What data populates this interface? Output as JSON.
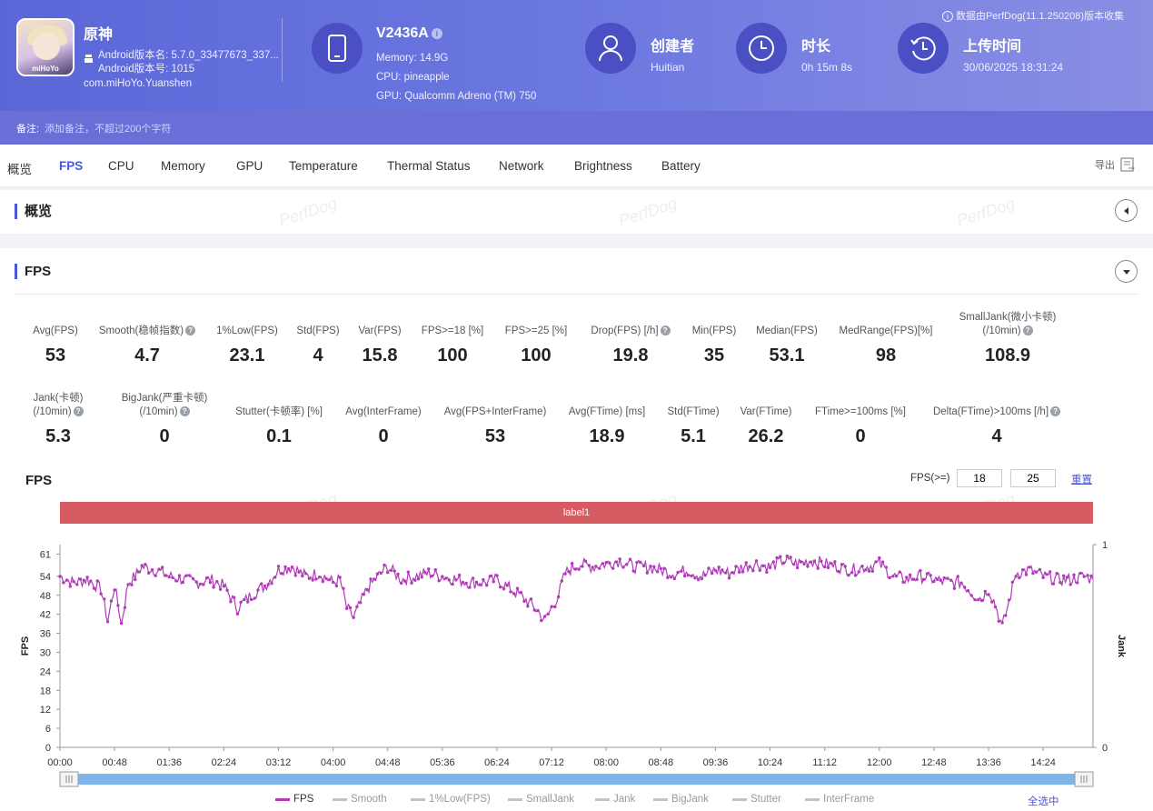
{
  "app": {
    "name": "原神",
    "version_name": "Android版本名: 5.7.0_33477673_337...",
    "version_code": "Android版本号: 1015",
    "package": "com.miHoYo.Yuanshen",
    "icon_text": "miHoYo"
  },
  "device": {
    "model": "V2436A",
    "memory": "Memory: 14.9G",
    "cpu": "CPU: pineapple",
    "gpu": "GPU: Qualcomm Adreno (TM) 750"
  },
  "creator": {
    "label": "创建者",
    "value": "Huitian"
  },
  "duration": {
    "label": "时长",
    "value": "0h 15m 8s"
  },
  "upload": {
    "label": "上传时间",
    "value": "30/06/2025 18:31:24"
  },
  "source_note": "数据由PerfDog(11.1.250208)版本收集",
  "note": {
    "label": "备注:",
    "placeholder": "添加备注，不超过200个字符"
  },
  "tabs": [
    "概览",
    "FPS",
    "CPU",
    "Memory",
    "GPU",
    "Temperature",
    "Thermal Status",
    "Network",
    "Brightness",
    "Battery"
  ],
  "active_tab": "FPS",
  "export_label": "导出",
  "watermark": "PerfDog",
  "overview_title": "概览",
  "fps_section_title": "FPS",
  "stats_row1": [
    {
      "label": "Avg(FPS)",
      "value": "53",
      "help": false
    },
    {
      "label": "Smooth(稳帧指数)",
      "value": "4.7",
      "help": true
    },
    {
      "label": "1%Low(FPS)",
      "value": "23.1",
      "help": false
    },
    {
      "label": "Std(FPS)",
      "value": "4",
      "help": false
    },
    {
      "label": "Var(FPS)",
      "value": "15.8",
      "help": false
    },
    {
      "label": "FPS>=18 [%]",
      "value": "100",
      "help": false
    },
    {
      "label": "FPS>=25 [%]",
      "value": "100",
      "help": false
    },
    {
      "label": "Drop(FPS) [/h]",
      "value": "19.8",
      "help": true
    },
    {
      "label": "Min(FPS)",
      "value": "35",
      "help": false
    },
    {
      "label": "Median(FPS)",
      "value": "53.1",
      "help": false
    },
    {
      "label": "MedRange(FPS)[%]",
      "value": "98",
      "help": false
    },
    {
      "label": "SmallJank(微小卡顿)",
      "label2": "(/10min)",
      "value": "108.9",
      "help": true
    }
  ],
  "stats_row2": [
    {
      "label": "Jank(卡顿)",
      "label2": "(/10min)",
      "value": "5.3",
      "help": true
    },
    {
      "label": "BigJank(严重卡顿)",
      "label2": "(/10min)",
      "value": "0",
      "help": true
    },
    {
      "label": "Stutter(卡顿率) [%]",
      "value": "0.1",
      "help": false
    },
    {
      "label": "Avg(InterFrame)",
      "value": "0",
      "help": false
    },
    {
      "label": "Avg(FPS+InterFrame)",
      "value": "53",
      "help": false
    },
    {
      "label": "Avg(FTime) [ms]",
      "value": "18.9",
      "help": false
    },
    {
      "label": "Std(FTime)",
      "value": "5.1",
      "help": false
    },
    {
      "label": "Var(FTime)",
      "value": "26.2",
      "help": false
    },
    {
      "label": "FTime>=100ms [%]",
      "value": "0",
      "help": false
    },
    {
      "label": "Delta(FTime)>100ms [/h]",
      "value": "4",
      "help": true
    }
  ],
  "chart_title": "FPS",
  "fps_threshold_label": "FPS(>=)",
  "fps_threshold_low": "18",
  "fps_threshold_high": "25",
  "reset_label": "重置",
  "label_bar": "label1",
  "select_all": "全选中",
  "legend": [
    {
      "name": "FPS",
      "active": true
    },
    {
      "name": "Smooth",
      "active": false
    },
    {
      "name": "1%Low(FPS)",
      "active": false
    },
    {
      "name": "SmallJank",
      "active": false
    },
    {
      "name": "Jank",
      "active": false
    },
    {
      "name": "BigJank",
      "active": false
    },
    {
      "name": "Stutter",
      "active": false
    },
    {
      "name": "InterFrame",
      "active": false
    }
  ],
  "chart_data": {
    "type": "line",
    "title": "FPS",
    "ylabel": "FPS",
    "y2label": "Jank",
    "yticks": [
      0,
      6,
      12,
      18,
      24,
      30,
      36,
      42,
      48,
      54,
      61
    ],
    "y2ticks": [
      0,
      1
    ],
    "ylim": [
      0,
      64
    ],
    "y2lim": [
      0,
      1
    ],
    "xticks": [
      "00:00",
      "00:48",
      "01:36",
      "02:24",
      "03:12",
      "04:00",
      "04:48",
      "05:36",
      "06:24",
      "07:12",
      "08:00",
      "08:48",
      "09:36",
      "10:24",
      "11:12",
      "12:00",
      "12:48",
      "13:36",
      "14:24"
    ],
    "x_unit": "minutes",
    "xlim": [
      0,
      15.13
    ],
    "series": [
      {
        "name": "FPS",
        "color": "#b03cb8",
        "x": [
          0,
          0.2,
          0.4,
          0.6,
          0.7,
          0.8,
          0.9,
          1.0,
          1.1,
          1.2,
          1.4,
          1.6,
          1.8,
          2.0,
          2.2,
          2.4,
          2.6,
          2.8,
          3.0,
          3.2,
          3.4,
          3.6,
          3.8,
          4.0,
          4.1,
          4.2,
          4.3,
          4.5,
          4.7,
          4.8,
          5.0,
          5.2,
          5.4,
          5.6,
          5.8,
          6.0,
          6.2,
          6.4,
          6.6,
          6.8,
          7.0,
          7.1,
          7.2,
          7.3,
          7.4,
          7.6,
          7.8,
          8.0,
          8.2,
          8.4,
          8.6,
          8.8,
          9.0,
          9.2,
          9.4,
          9.6,
          9.8,
          10.0,
          10.2,
          10.4,
          10.6,
          10.8,
          11.0,
          11.2,
          11.4,
          11.6,
          11.8,
          12.0,
          12.2,
          12.4,
          12.6,
          12.8,
          13.0,
          13.2,
          13.4,
          13.5,
          13.6,
          13.7,
          13.8,
          13.9,
          14.0,
          14.2,
          14.4,
          14.6,
          14.8,
          15.0,
          15.13
        ],
        "y": [
          54,
          52,
          53,
          50,
          40,
          51,
          39,
          52,
          54,
          57,
          56,
          54,
          53,
          52,
          53,
          51,
          44,
          48,
          51,
          56,
          57,
          54,
          55,
          52,
          53,
          44,
          41,
          50,
          55,
          57,
          53,
          54,
          55,
          54,
          53,
          52,
          52,
          53,
          50,
          47,
          43,
          40,
          44,
          48,
          55,
          58,
          57,
          58,
          59,
          57,
          57,
          56,
          55,
          56,
          54,
          56,
          55,
          57,
          58,
          57,
          59,
          58,
          59,
          58,
          57,
          56,
          57,
          58,
          54,
          53,
          54,
          53,
          52,
          52,
          48,
          47,
          50,
          45,
          38,
          46,
          55,
          56,
          54,
          53,
          53,
          54,
          53
        ]
      }
    ],
    "jank_y2": []
  }
}
